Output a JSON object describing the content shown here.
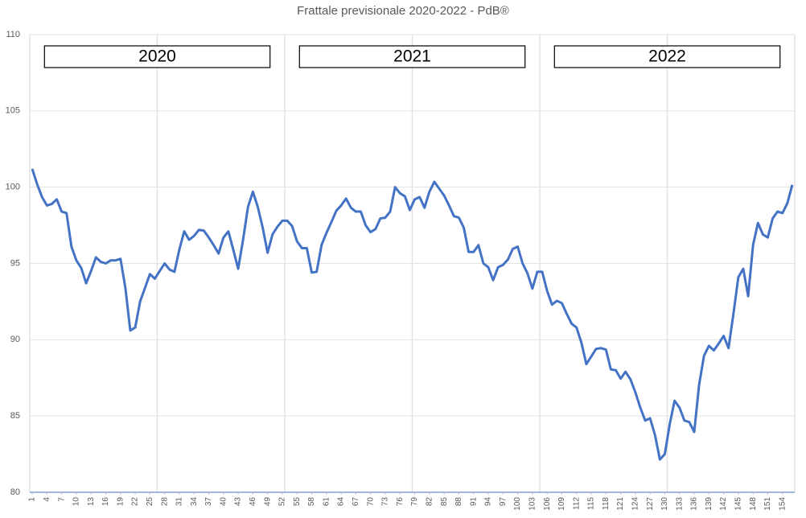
{
  "chart_data": {
    "type": "line",
    "title": "Frattale previsionale 2020-2022 - PdB®",
    "color": "#4472c4",
    "annotations": [
      "2020",
      "2021",
      "2022"
    ],
    "x": [
      1,
      2,
      3,
      4,
      5,
      6,
      7,
      8,
      9,
      10,
      11,
      12,
      13,
      14,
      15,
      16,
      17,
      18,
      19,
      20,
      21,
      22,
      23,
      24,
      25,
      26,
      27,
      28,
      29,
      30,
      31,
      32,
      33,
      34,
      35,
      36,
      37,
      38,
      39,
      40,
      41,
      42,
      43,
      44,
      45,
      46,
      47,
      48,
      49,
      50,
      51,
      52,
      53,
      54,
      55,
      56,
      57,
      58,
      59,
      60,
      61,
      62,
      63,
      64,
      65,
      66,
      67,
      68,
      69,
      70,
      71,
      72,
      73,
      74,
      75,
      76,
      77,
      78,
      79,
      80,
      81,
      82,
      83,
      84,
      85,
      86,
      87,
      88,
      89,
      90,
      91,
      92,
      93,
      94,
      95,
      96,
      97,
      98,
      99,
      100,
      101,
      102,
      103,
      104,
      105,
      106,
      107,
      108,
      109,
      110,
      111,
      112,
      113,
      114,
      115,
      116,
      117,
      118,
      119,
      120,
      121,
      122,
      123,
      124,
      125,
      126,
      127,
      128,
      129,
      130,
      131,
      132,
      133,
      134,
      135,
      136,
      137,
      138,
      139,
      140,
      141,
      142,
      143,
      144,
      145,
      146,
      147,
      148,
      149,
      150,
      151,
      152,
      153,
      154,
      155,
      156
    ],
    "values": [
      101.2,
      100.2,
      99.35,
      98.8,
      98.9,
      99.2,
      98.4,
      98.3,
      96.1,
      95.2,
      94.7,
      93.7,
      94.5,
      95.4,
      95.1,
      95.0,
      95.2,
      95.2,
      95.3,
      93.4,
      90.6,
      90.8,
      92.5,
      93.4,
      94.3,
      94.0,
      94.5,
      95.0,
      94.6,
      94.45,
      95.9,
      97.1,
      96.55,
      96.8,
      97.2,
      97.15,
      96.7,
      96.2,
      95.65,
      96.7,
      97.1,
      95.9,
      94.65,
      96.55,
      98.7,
      99.7,
      98.7,
      97.35,
      95.7,
      96.9,
      97.4,
      97.8,
      97.8,
      97.45,
      96.45,
      96.0,
      96.0,
      94.4,
      94.45,
      96.2,
      97.0,
      97.7,
      98.45,
      98.8,
      99.25,
      98.65,
      98.4,
      98.4,
      97.5,
      97.05,
      97.25,
      97.95,
      98.0,
      98.4,
      100.0,
      99.6,
      99.4,
      98.5,
      99.2,
      99.35,
      98.65,
      99.7,
      100.35,
      99.9,
      99.45,
      98.8,
      98.1,
      98.0,
      97.35,
      95.75,
      95.75,
      96.2,
      95.0,
      94.75,
      93.9,
      94.75,
      94.9,
      95.25,
      95.95,
      96.1,
      95.0,
      94.35,
      93.35,
      94.45,
      94.45,
      93.2,
      92.3,
      92.55,
      92.4,
      91.7,
      91.05,
      90.8,
      89.8,
      88.4,
      88.9,
      89.4,
      89.45,
      89.35,
      88.05,
      88.0,
      87.45,
      87.9,
      87.4,
      86.55,
      85.55,
      84.7,
      84.85,
      83.75,
      82.15,
      82.5,
      84.45,
      86.0,
      85.55,
      84.7,
      84.6,
      83.95,
      87.05,
      88.95,
      89.6,
      89.3,
      89.75,
      90.25,
      89.45,
      91.7,
      94.1,
      94.65,
      92.85,
      96.2,
      97.65,
      96.9,
      96.7,
      97.95,
      98.4,
      98.3,
      98.95,
      100.15
    ],
    "xlim": [
      0.5,
      156.5
    ],
    "xticks": [
      1,
      4,
      7,
      10,
      13,
      16,
      19,
      22,
      25,
      28,
      31,
      34,
      37,
      40,
      43,
      46,
      49,
      52,
      55,
      58,
      61,
      64,
      67,
      70,
      73,
      76,
      79,
      82,
      85,
      88,
      91,
      94,
      97,
      100,
      103,
      106,
      109,
      112,
      115,
      118,
      121,
      124,
      127,
      130,
      133,
      136,
      139,
      142,
      145,
      148,
      151,
      154
    ],
    "ylim": [
      80,
      110
    ],
    "yticks": [
      80,
      85,
      90,
      95,
      100,
      105,
      110
    ],
    "grid": true
  }
}
